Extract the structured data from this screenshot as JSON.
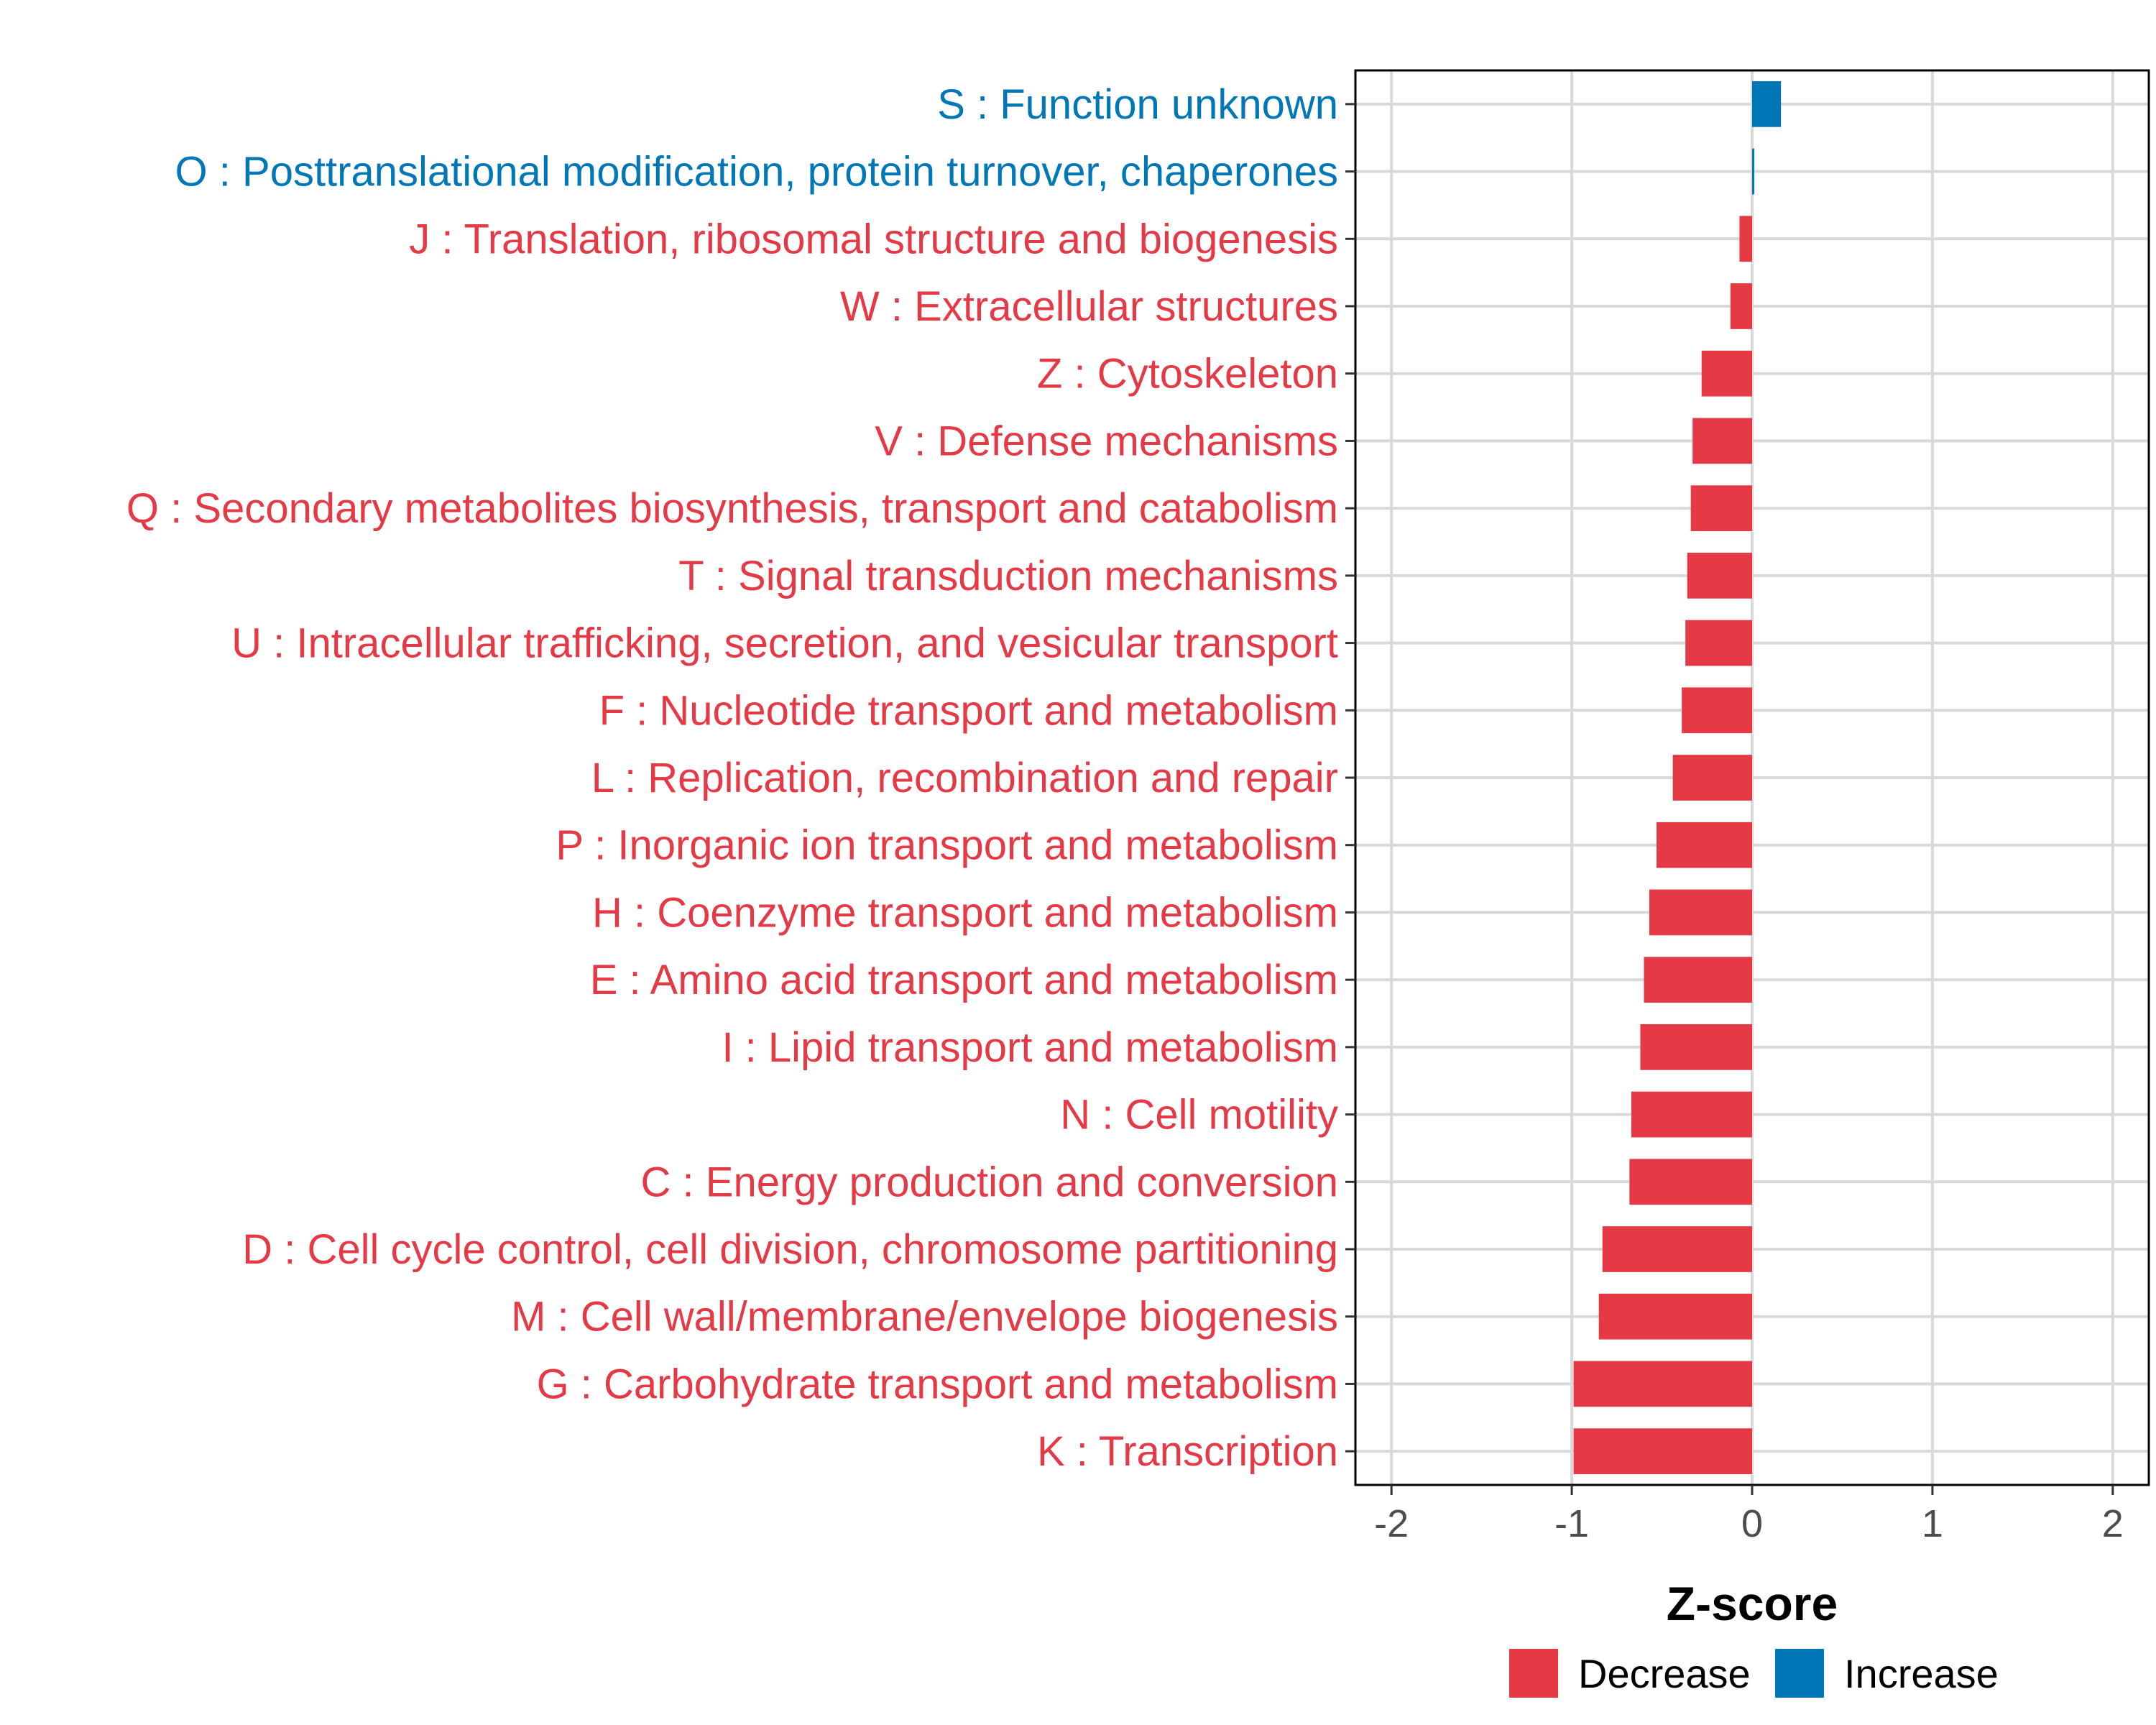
{
  "colors": {
    "decrease": "#E63946",
    "increase": "#0077B6",
    "grid": "#D9D9D9",
    "axis": "#000000"
  },
  "chart_data": {
    "type": "bar",
    "orientation": "horizontal",
    "title": "",
    "xlabel": "Z-score",
    "ylabel": "",
    "xlim": [
      -2.2,
      2.2
    ],
    "xticks": [
      "-2",
      "-1",
      "0",
      "1",
      "2"
    ],
    "grid": true,
    "legend": {
      "position": "bottom-right",
      "entries": [
        "Decrease",
        "Increase"
      ]
    },
    "categories": [
      "S : Function unknown",
      "O : Posttranslational modification, protein turnover, chaperones",
      "J : Translation, ribosomal structure and biogenesis",
      "W : Extracellular structures",
      "Z : Cytoskeleton",
      "V : Defense mechanisms",
      "Q : Secondary metabolites biosynthesis, transport and catabolism",
      "T : Signal transduction mechanisms",
      "U : Intracellular trafficking, secretion, and vesicular transport",
      "F : Nucleotide transport and metabolism",
      "L : Replication, recombination and repair",
      "P : Inorganic ion transport and metabolism",
      "H : Coenzyme transport and metabolism",
      "E : Amino acid transport and metabolism",
      "I : Lipid transport and metabolism",
      "N : Cell motility",
      "C : Energy production and conversion",
      "D : Cell cycle control, cell division, chromosome partitioning",
      "M : Cell wall/membrane/envelope biogenesis",
      "G : Carbohydrate transport and metabolism",
      "K : Transcription"
    ],
    "values": [
      0.16,
      0.01,
      -0.07,
      -0.12,
      -0.28,
      -0.33,
      -0.34,
      -0.36,
      -0.37,
      -0.39,
      -0.44,
      -0.53,
      -0.57,
      -0.6,
      -0.62,
      -0.67,
      -0.68,
      -0.83,
      -0.85,
      -0.99,
      -0.99
    ],
    "groups": [
      "Increase",
      "Increase",
      "Decrease",
      "Decrease",
      "Decrease",
      "Decrease",
      "Decrease",
      "Decrease",
      "Decrease",
      "Decrease",
      "Decrease",
      "Decrease",
      "Decrease",
      "Decrease",
      "Decrease",
      "Decrease",
      "Decrease",
      "Decrease",
      "Decrease",
      "Decrease",
      "Decrease"
    ]
  }
}
